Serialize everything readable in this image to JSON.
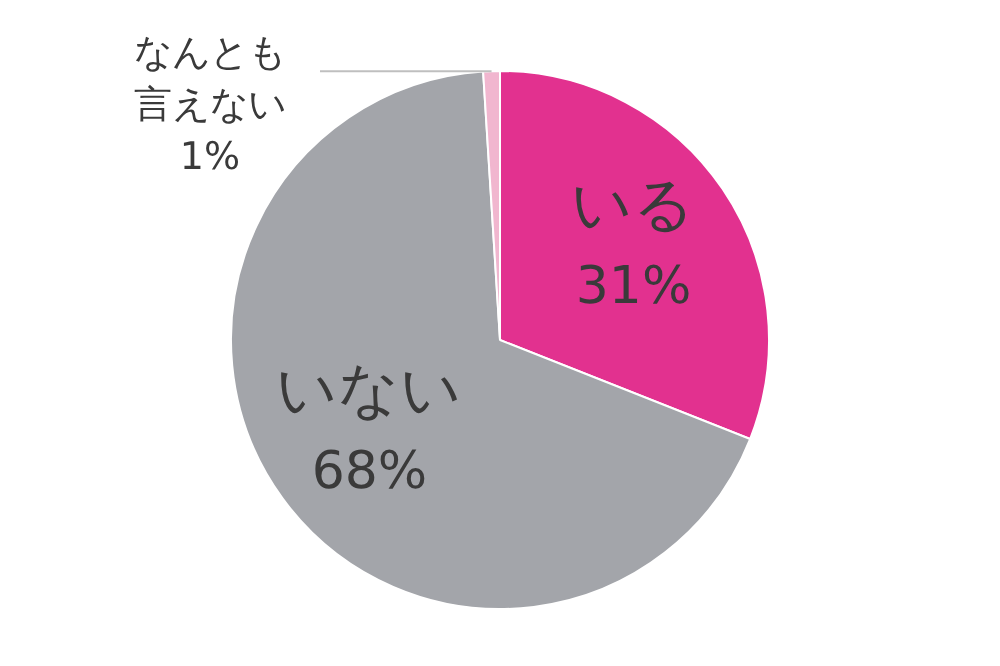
{
  "chart_data": {
    "type": "pie",
    "categories": [
      "いる",
      "いない",
      "なんとも言えない"
    ],
    "values": [
      31,
      68,
      1
    ],
    "colors": [
      "#e2318f",
      "#a3a5aa",
      "#f1b6cf"
    ],
    "value_labels": [
      "31%",
      "68%",
      "1%"
    ],
    "legend": false
  }
}
